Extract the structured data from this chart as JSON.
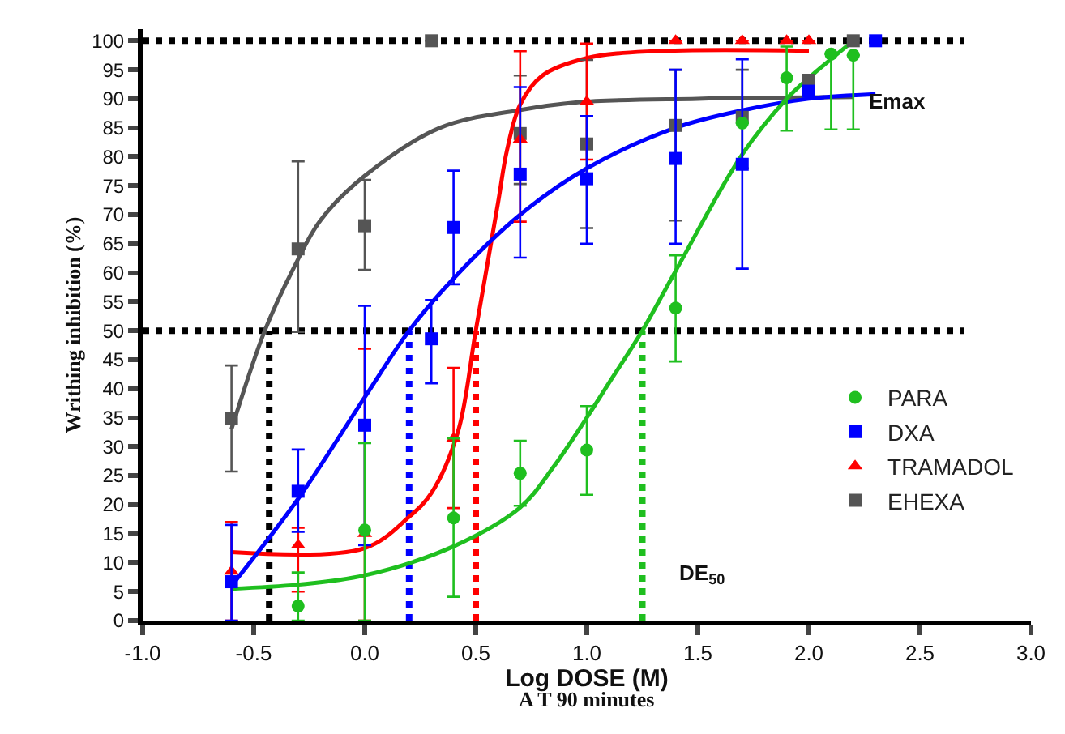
{
  "chart_data": {
    "type": "scatter",
    "xlabel": "Log DOSE (M)",
    "ylabel": "Writhing inhibition (%)",
    "xlim": [
      -1.0,
      3.0
    ],
    "xticks": [
      {
        "value": -1.0,
        "label": "-1.0"
      },
      {
        "value": -0.5,
        "label": "-0.5"
      },
      {
        "value": 0,
        "label": "0.0"
      },
      {
        "value": 0.5,
        "label": "0.5"
      },
      {
        "value": 1,
        "label": "1.0"
      },
      {
        "value": 1.5,
        "label": "1.5"
      },
      {
        "value": 2,
        "label": "2.0"
      },
      {
        "value": 2.5,
        "label": "2.5"
      },
      {
        "value": 3,
        "label": "3.0"
      }
    ],
    "ylim": [
      0,
      102
    ],
    "yticks": [
      0,
      5,
      10,
      15,
      20,
      25,
      30,
      35,
      40,
      45,
      50,
      55,
      60,
      65,
      70,
      75,
      80,
      85,
      90,
      95,
      100
    ],
    "grid": false,
    "legend": "bottom right",
    "series": [
      {
        "name": "PARA",
        "color": "#1fbf1f",
        "marker": "circle",
        "x": [
          -0.3,
          0,
          0.4,
          0.7,
          1.0,
          1.4,
          1.7,
          1.9,
          2.1,
          2.2
        ],
        "values": [
          2.5,
          15.6,
          17.7,
          25.4,
          29.4,
          53.9,
          85.8,
          93.6,
          97.7,
          97.5
        ],
        "errors": [
          [
            0,
            8.3
          ],
          [
            0,
            30.6
          ],
          [
            4.1,
            31.4
          ],
          [
            19.8,
            31
          ],
          [
            21.7,
            37
          ],
          [
            44.7,
            63
          ],
          null,
          [
            84.5,
            99
          ],
          [
            84.7,
            97.7
          ],
          [
            84.7,
            97.5
          ]
        ]
      },
      {
        "name": "DXA",
        "color": "#0000ff",
        "marker": "square",
        "x": [
          -0.6,
          -0.3,
          0,
          0.3,
          0.4,
          0.7,
          1.0,
          1.4,
          1.7,
          2.0,
          2.3
        ],
        "values": [
          6.7,
          22.3,
          33.7,
          48.6,
          67.8,
          77,
          76.2,
          79.7,
          78.7,
          91.3,
          100
        ],
        "errors": [
          [
            0,
            16.5
          ],
          [
            15.3,
            29.5
          ],
          [
            13,
            54.3
          ],
          [
            40.9,
            55.3
          ],
          [
            58,
            77.6
          ],
          [
            62.6,
            92
          ],
          [
            65,
            87
          ],
          [
            65,
            95
          ],
          [
            60.7,
            96.8
          ],
          null,
          null
        ]
      },
      {
        "name": "TRAMADOL",
        "color": "#ff0000",
        "marker": "triangle",
        "x": [
          -0.6,
          -0.3,
          0,
          0.4,
          0.7,
          1.0,
          1.4,
          1.7,
          1.9,
          2.0
        ],
        "values": [
          8.5,
          13,
          15,
          31.4,
          83,
          89.5,
          100,
          100,
          100,
          100
        ],
        "errors": [
          [
            0,
            17
          ],
          [
            5,
            16
          ],
          [
            0,
            46.9
          ],
          [
            19.4,
            43.6
          ],
          [
            68.8,
            98.2
          ],
          [
            79.5,
            99.5
          ],
          null,
          null,
          null,
          null
        ]
      },
      {
        "name": "EHEXA",
        "color": "#555555",
        "marker": "square",
        "x": [
          -0.6,
          -0.3,
          0,
          0.3,
          0.7,
          1.0,
          1.4,
          1.7,
          2.0,
          2.2
        ],
        "values": [
          34.9,
          64.1,
          68.1,
          100,
          84,
          82.2,
          85.4,
          86.8,
          93.2,
          100
        ],
        "errors": [
          [
            25.7,
            44
          ],
          [
            49.8,
            79.2
          ],
          [
            60.5,
            76
          ],
          null,
          [
            75.3,
            94
          ],
          [
            67.7,
            96.7
          ],
          [
            69,
            95
          ],
          [
            78,
            95
          ],
          null,
          null
        ]
      },
      {
        "color": "#1fbf1f",
        "type": "line",
        "marker": "none",
        "x": [
          -0.6,
          -0.3,
          0,
          0.4,
          0.7,
          0.85,
          1.0,
          1.1,
          1.25,
          1.4,
          1.7,
          1.9,
          2.0,
          2.2
        ],
        "values": [
          5.5,
          6.2,
          7.8,
          12.8,
          19.5,
          26.5,
          35,
          41,
          50,
          60.3,
          80.4,
          90,
          93.6,
          100
        ]
      },
      {
        "color": "#0000ff",
        "type": "line",
        "marker": "none",
        "x": [
          -0.6,
          -0.3,
          0,
          0.2,
          0.4,
          0.7,
          1.0,
          1.4,
          1.7,
          2.0,
          2.3
        ],
        "values": [
          6,
          21,
          38.5,
          50,
          59,
          70,
          78,
          85,
          88,
          90,
          90.8
        ]
      },
      {
        "color": "#ff0000",
        "type": "line",
        "marker": "none",
        "x": [
          -0.6,
          0,
          0.2,
          0.3,
          0.42,
          0.5,
          0.6,
          0.64,
          0.7,
          0.8,
          1.0,
          1.3,
          2.0
        ],
        "values": [
          11.8,
          12.5,
          17.9,
          22,
          32.6,
          50,
          72,
          81,
          89,
          94,
          97,
          98.2,
          98.3
        ]
      },
      {
        "color": "#555555",
        "type": "line",
        "marker": "none",
        "x": [
          -0.6,
          -0.45,
          -0.32,
          -0.2,
          0,
          0.34,
          0.69,
          0.96,
          1.5,
          2.2
        ],
        "values": [
          33,
          50,
          60.8,
          69,
          76.7,
          85,
          88,
          89.4,
          90,
          90.3
        ]
      }
    ],
    "ref_lines": [
      {
        "axis": "y",
        "value": 100,
        "color": "#000000",
        "line_style": "dotted"
      },
      {
        "axis": "y",
        "value": 50,
        "color": "#000000",
        "line_style": "dotted"
      },
      {
        "axis": "x",
        "value": -0.43,
        "color": "#000000",
        "line_style": "dotted"
      },
      {
        "axis": "x",
        "value": 0.2,
        "color": "#0000ff",
        "line_style": "dotted"
      },
      {
        "axis": "x",
        "value": 0.5,
        "color": "#ff0000",
        "line_style": "dotted"
      },
      {
        "axis": "x",
        "value": 1.25,
        "color": "#1fbf1f",
        "line_style": "dotted"
      }
    ],
    "annotations": [
      "A T 90 minutes",
      "Emax",
      "DE$_{50}$"
    ]
  }
}
